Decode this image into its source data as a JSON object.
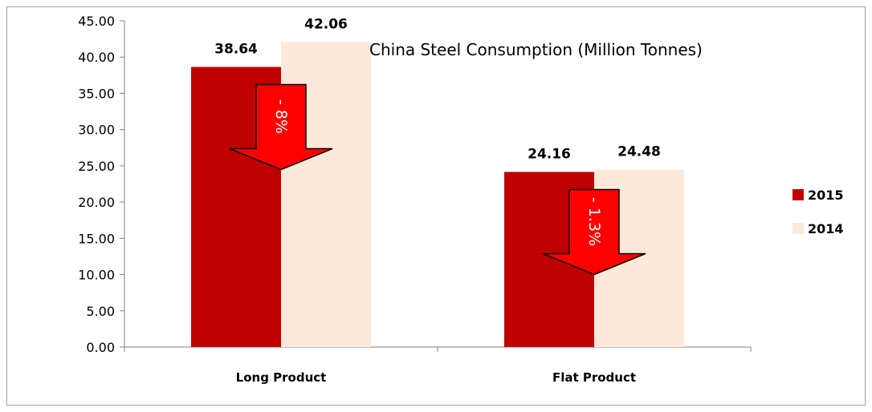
{
  "chart_data": {
    "type": "bar",
    "title": "China Steel Consumption (Million Tonnes)",
    "xlabel": "",
    "ylabel": "",
    "categories": [
      "Long Product",
      "Flat Product"
    ],
    "series": [
      {
        "name": "2015",
        "values": [
          38.64,
          24.16
        ],
        "color": "#c00000"
      },
      {
        "name": "2014",
        "values": [
          42.06,
          24.48
        ],
        "color": "#fde9d9"
      }
    ],
    "data_labels": [
      [
        "38.64",
        "24.16"
      ],
      [
        "42.06",
        "24.48"
      ]
    ],
    "ylim": [
      0,
      45
    ],
    "yticks": [
      "0.00",
      "5.00",
      "10.00",
      "15.00",
      "20.00",
      "25.00",
      "30.00",
      "35.00",
      "40.00",
      "45.00"
    ],
    "grid": false,
    "legend_position": "right",
    "annotations": [
      {
        "text": "- 8%",
        "category": "Long Product",
        "color": "#ff0000"
      },
      {
        "text": "- 1.3%",
        "category": "Flat Product",
        "color": "#ff0000"
      }
    ]
  }
}
